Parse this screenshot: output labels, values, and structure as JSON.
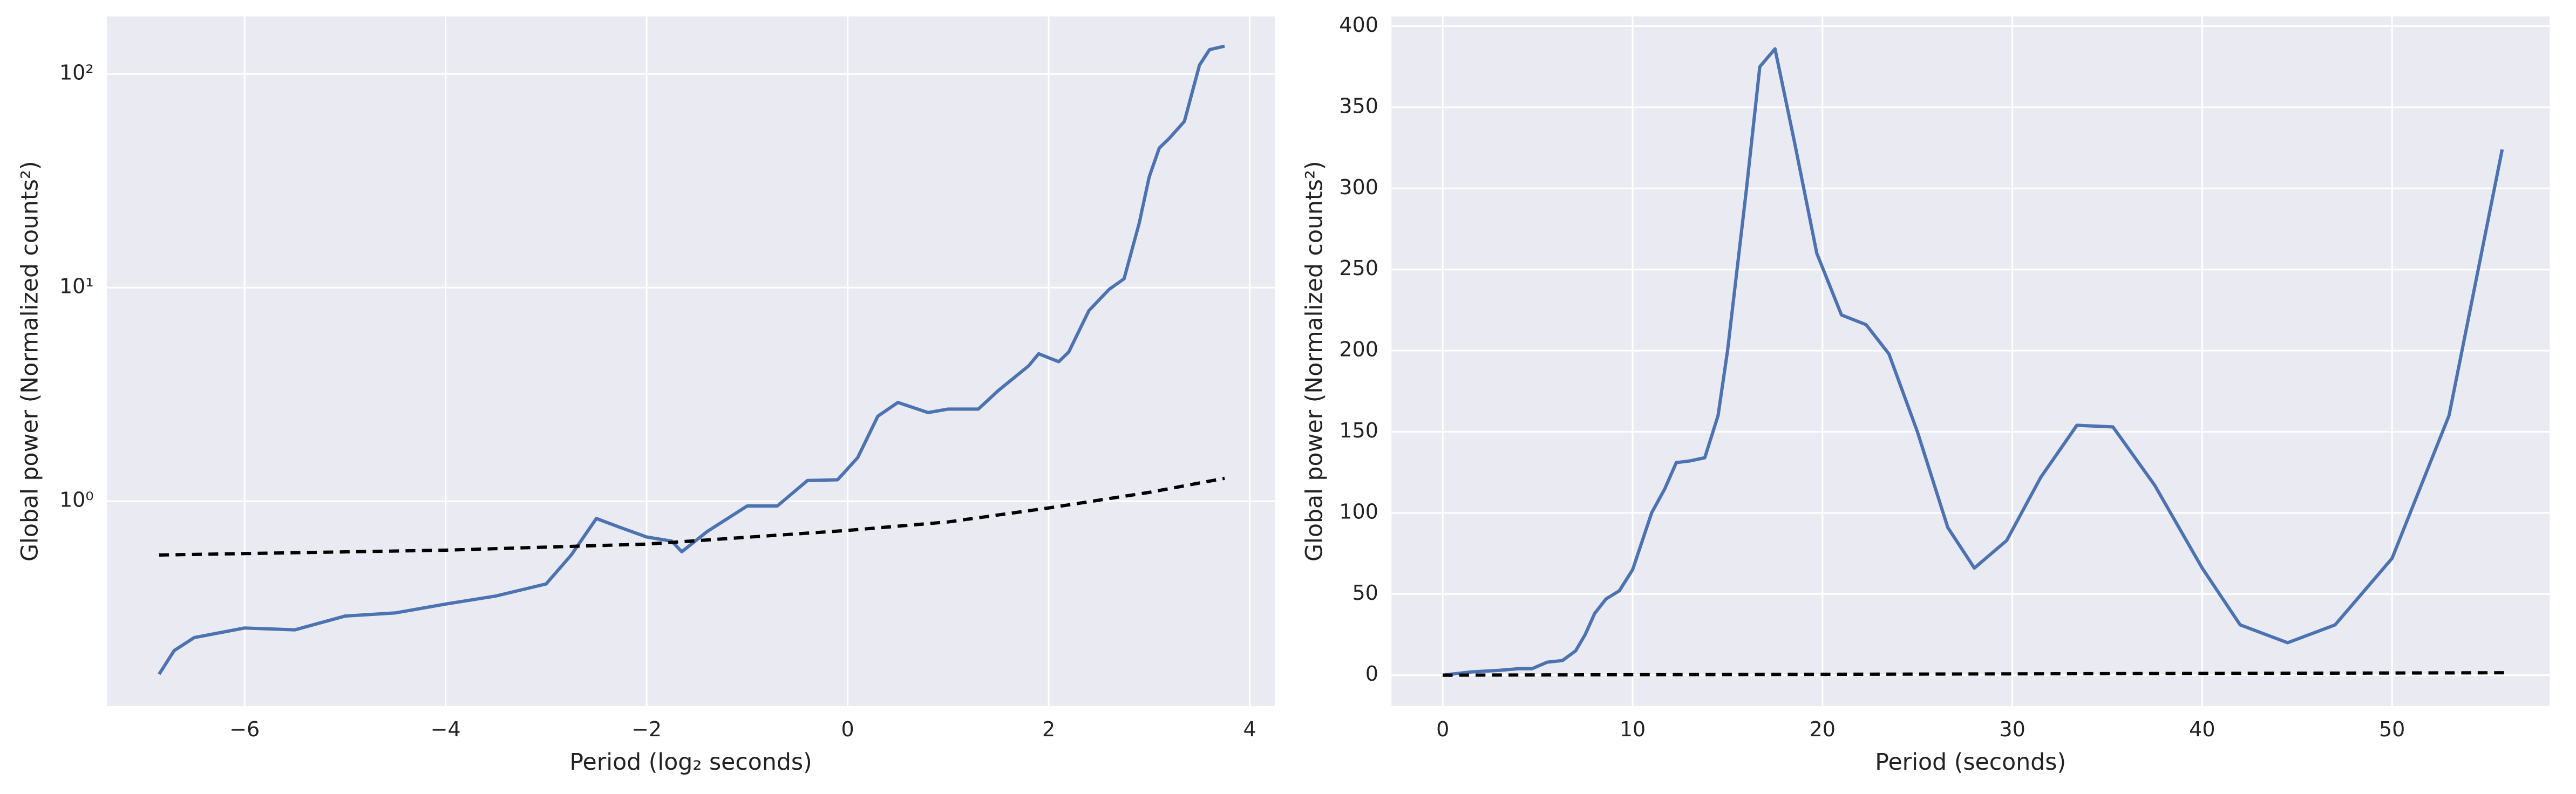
{
  "chart_data": [
    {
      "type": "line",
      "xlabel": "Period (log₂ seconds)",
      "ylabel": "Global power (Normalized counts²)",
      "log_y": true,
      "grid": true,
      "xlim": [
        -7.37,
        4.25
      ],
      "ylim": [
        0.11,
        186
      ],
      "xticks": [
        {
          "value": -6,
          "label": "−6"
        },
        {
          "value": -4,
          "label": "−4"
        },
        {
          "value": -2,
          "label": "−2"
        },
        0,
        2,
        4
      ],
      "yticks": [
        {
          "value": 1,
          "label": "10⁰"
        },
        {
          "value": 10,
          "label": "10¹"
        },
        {
          "value": 100,
          "label": "10²"
        }
      ],
      "series": [
        {
          "color": "#4c72b0",
          "dashed": false,
          "x": [
            -6.85,
            -6.7,
            -6.5,
            -6.0,
            -5.5,
            -5.0,
            -4.5,
            -4.0,
            -3.5,
            -3.0,
            -2.75,
            -2.5,
            -2.25,
            -2.0,
            -1.75,
            -1.65,
            -1.4,
            -1.0,
            -0.7,
            -0.4,
            -0.1,
            0.1,
            0.3,
            0.5,
            0.8,
            1.0,
            1.3,
            1.5,
            1.8,
            1.9,
            2.1,
            2.2,
            2.4,
            2.6,
            2.75,
            2.9,
            3.0,
            3.1,
            3.2,
            3.35,
            3.5,
            3.6,
            3.75
          ],
          "values": [
            0.155,
            0.2,
            0.23,
            0.255,
            0.25,
            0.29,
            0.3,
            0.33,
            0.36,
            0.41,
            0.56,
            0.83,
            0.75,
            0.68,
            0.65,
            0.58,
            0.72,
            0.95,
            0.95,
            1.25,
            1.26,
            1.6,
            2.5,
            2.9,
            2.6,
            2.7,
            2.7,
            3.3,
            4.3,
            4.9,
            4.5,
            5.0,
            7.8,
            9.8,
            11,
            20,
            33,
            45,
            50,
            60,
            110,
            130,
            135
          ]
        },
        {
          "color": "#000000",
          "dashed": true,
          "x": [
            -6.85,
            -4,
            -2,
            0,
            1,
            2,
            3,
            3.75
          ],
          "values": [
            0.56,
            0.59,
            0.63,
            0.73,
            0.8,
            0.93,
            1.1,
            1.28
          ]
        }
      ]
    },
    {
      "type": "line",
      "xlabel": "Period (seconds)",
      "ylabel": "Global power (Normalized counts²)",
      "log_y": false,
      "grid": true,
      "xlim": [
        -2.7,
        58.3
      ],
      "ylim": [
        -19,
        406
      ],
      "xticks": [
        0,
        10,
        20,
        30,
        40,
        50
      ],
      "yticks": [
        0,
        50,
        100,
        150,
        200,
        250,
        300,
        350,
        400
      ],
      "series": [
        {
          "color": "#4c72b0",
          "dashed": false,
          "x": [
            0,
            1.5,
            3,
            4,
            4.7,
            5.5,
            6.3,
            7,
            7.5,
            8,
            8.6,
            9.3,
            10,
            11,
            11.7,
            12.3,
            13,
            13.8,
            14.5,
            15,
            16,
            16.7,
            17.5,
            18.5,
            19.7,
            21,
            22.3,
            23.5,
            25,
            26.6,
            28,
            29.7,
            31.5,
            33.4,
            35.3,
            37.5,
            40,
            42,
            44.5,
            47,
            50,
            53,
            55.8
          ],
          "values": [
            0,
            2,
            3,
            4,
            4,
            8,
            9,
            15,
            25,
            38,
            47,
            52,
            65,
            100,
            115,
            131,
            132,
            134,
            160,
            200,
            300,
            375,
            386,
            330,
            260,
            222,
            216,
            198,
            150,
            91,
            66,
            83,
            122,
            154,
            153,
            117,
            66,
            31,
            20,
            31,
            72,
            160,
            324
          ]
        },
        {
          "color": "#000000",
          "dashed": true,
          "x": [
            0,
            56
          ],
          "values": [
            0,
            1.5
          ]
        }
      ]
    }
  ]
}
